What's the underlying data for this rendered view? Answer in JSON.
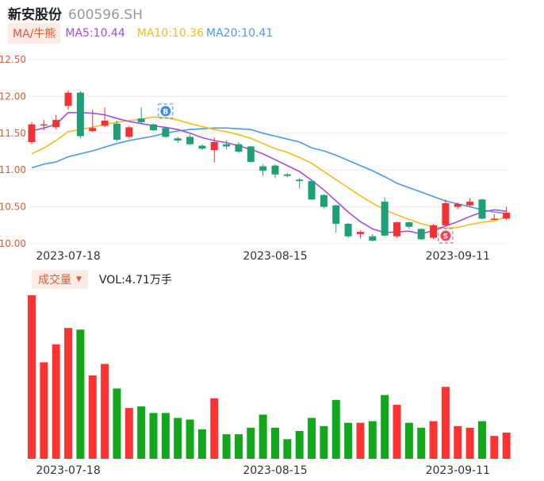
{
  "header": {
    "stock_name": "新安股份",
    "stock_code": "600596.SH"
  },
  "ma_legend": {
    "toggle": "MA/牛熊",
    "ma5": "MA5:10.44",
    "ma10": "MA10:10.36",
    "ma20": "MA20:10.41"
  },
  "volume_legend": {
    "toggle": "成交量",
    "value": "VOL:4.71万手"
  },
  "badges": {
    "b": "B",
    "s": "S"
  },
  "colors": {
    "up": "#f03236",
    "down": "#1ea076",
    "vol_up": "#ff3232",
    "vol_down": "#13a81c",
    "ma5": "#a34ce8",
    "ma10": "#f2bd1b",
    "ma20": "#4a9ae8",
    "grid": "#ececec"
  },
  "chart_data": [
    {
      "type": "candlestick",
      "y_ticks": [
        "12.50",
        "12.00",
        "11.50",
        "11.00",
        "10.50",
        "10.00"
      ],
      "ylim": [
        10.0,
        12.5
      ],
      "x_ticks": [
        {
          "label": "2023-07-18",
          "index": 3
        },
        {
          "label": "2023-08-15",
          "index": 20
        },
        {
          "label": "2023-09-11",
          "index": 35
        }
      ],
      "candles": [
        {
          "o": 11.38,
          "c": 11.62,
          "h": 11.65,
          "l": 11.35
        },
        {
          "o": 11.62,
          "c": 11.62,
          "h": 11.68,
          "l": 11.54
        },
        {
          "o": 11.58,
          "c": 11.68,
          "h": 11.75,
          "l": 11.55
        },
        {
          "o": 11.87,
          "c": 12.05,
          "h": 12.08,
          "l": 11.82
        },
        {
          "o": 12.05,
          "c": 11.46,
          "h": 12.07,
          "l": 11.43
        },
        {
          "o": 11.53,
          "c": 11.57,
          "h": 11.82,
          "l": 11.52
        },
        {
          "o": 11.6,
          "c": 11.67,
          "h": 11.85,
          "l": 11.58
        },
        {
          "o": 11.63,
          "c": 11.41,
          "h": 11.67,
          "l": 11.39
        },
        {
          "o": 11.45,
          "c": 11.58,
          "h": 11.6,
          "l": 11.43
        },
        {
          "o": 11.7,
          "c": 11.65,
          "h": 11.85,
          "l": 11.62
        },
        {
          "o": 11.62,
          "c": 11.54,
          "h": 11.63,
          "l": 11.53
        },
        {
          "o": 11.57,
          "c": 11.45,
          "h": 11.58,
          "l": 11.44
        },
        {
          "o": 11.43,
          "c": 11.4,
          "h": 11.45,
          "l": 11.37
        },
        {
          "o": 11.45,
          "c": 11.35,
          "h": 11.48,
          "l": 11.34
        },
        {
          "o": 11.33,
          "c": 11.29,
          "h": 11.35,
          "l": 11.27
        },
        {
          "o": 11.27,
          "c": 11.38,
          "h": 11.44,
          "l": 11.1
        },
        {
          "o": 11.35,
          "c": 11.32,
          "h": 11.4,
          "l": 11.28
        },
        {
          "o": 11.35,
          "c": 11.25,
          "h": 11.38,
          "l": 11.23
        },
        {
          "o": 11.32,
          "c": 11.11,
          "h": 11.33,
          "l": 11.1
        },
        {
          "o": 11.05,
          "c": 10.99,
          "h": 11.08,
          "l": 10.92
        },
        {
          "o": 11.06,
          "c": 10.94,
          "h": 11.08,
          "l": 10.89
        },
        {
          "o": 10.94,
          "c": 10.92,
          "h": 10.96,
          "l": 10.9
        },
        {
          "o": 10.87,
          "c": 10.85,
          "h": 10.89,
          "l": 10.75
        },
        {
          "o": 10.85,
          "c": 10.6,
          "h": 10.87,
          "l": 10.59
        },
        {
          "o": 10.66,
          "c": 10.5,
          "h": 10.67,
          "l": 10.48
        },
        {
          "o": 10.52,
          "c": 10.27,
          "h": 10.53,
          "l": 10.15
        },
        {
          "o": 10.27,
          "c": 10.1,
          "h": 10.28,
          "l": 10.08
        },
        {
          "o": 10.13,
          "c": 10.16,
          "h": 10.18,
          "l": 10.07
        },
        {
          "o": 10.1,
          "c": 10.04,
          "h": 10.13,
          "l": 10.03
        },
        {
          "o": 10.57,
          "c": 10.11,
          "h": 10.63,
          "l": 10.1
        },
        {
          "o": 10.1,
          "c": 10.29,
          "h": 10.3,
          "l": 10.08
        },
        {
          "o": 10.29,
          "c": 10.23,
          "h": 10.3,
          "l": 10.2
        },
        {
          "o": 10.2,
          "c": 10.06,
          "h": 10.21,
          "l": 10.05
        },
        {
          "o": 10.08,
          "c": 10.25,
          "h": 10.27,
          "l": 10.06
        },
        {
          "o": 10.25,
          "c": 10.55,
          "h": 10.6,
          "l": 10.23
        },
        {
          "o": 10.5,
          "c": 10.54,
          "h": 10.56,
          "l": 10.47
        },
        {
          "o": 10.52,
          "c": 10.57,
          "h": 10.62,
          "l": 10.5
        },
        {
          "o": 10.6,
          "c": 10.34,
          "h": 10.61,
          "l": 10.33
        },
        {
          "o": 10.34,
          "c": 10.34,
          "h": 10.4,
          "l": 10.33
        },
        {
          "o": 10.34,
          "c": 10.42,
          "h": 10.5,
          "l": 10.32
        }
      ],
      "ma5": [
        11.53,
        11.57,
        11.62,
        11.78,
        11.78,
        11.77,
        11.75,
        11.7,
        11.66,
        11.63,
        11.6,
        11.58,
        11.55,
        11.5,
        11.44,
        11.4,
        11.37,
        11.33,
        11.28,
        11.22,
        11.14,
        11.06,
        10.98,
        10.86,
        10.73,
        10.58,
        10.43,
        10.3,
        10.2,
        10.15,
        10.16,
        10.17,
        10.13,
        10.18,
        10.24,
        10.3,
        10.37,
        10.43,
        10.46,
        10.44
      ],
      "ma10": [
        11.22,
        11.3,
        11.4,
        11.52,
        11.55,
        11.58,
        11.62,
        11.65,
        11.67,
        11.69,
        11.72,
        11.71,
        11.68,
        11.63,
        11.59,
        11.55,
        11.52,
        11.48,
        11.43,
        11.36,
        11.29,
        11.24,
        11.17,
        11.09,
        10.98,
        10.87,
        10.76,
        10.65,
        10.55,
        10.46,
        10.39,
        10.33,
        10.27,
        10.23,
        10.21,
        10.22,
        10.26,
        10.29,
        10.31,
        10.36
      ],
      "ma20": [
        11.03,
        11.08,
        11.11,
        11.18,
        11.22,
        11.26,
        11.31,
        11.36,
        11.4,
        11.43,
        11.46,
        11.5,
        11.53,
        11.55,
        11.56,
        11.57,
        11.57,
        11.56,
        11.55,
        11.5,
        11.46,
        11.42,
        11.38,
        11.3,
        11.26,
        11.2,
        11.13,
        11.06,
        10.99,
        10.91,
        10.82,
        10.76,
        10.7,
        10.64,
        10.58,
        10.54,
        10.5,
        10.46,
        10.43,
        10.41
      ]
    },
    {
      "type": "bar",
      "title": "",
      "values": [
        100,
        59,
        70,
        80,
        79,
        51,
        58,
        43,
        31,
        32,
        28,
        28,
        25,
        24,
        18,
        37,
        15,
        15,
        19,
        27,
        19,
        12,
        17,
        25,
        20,
        36,
        22,
        22,
        23,
        39,
        33,
        22,
        19,
        23,
        44,
        20,
        19,
        23,
        14,
        16
      ],
      "ylim": [
        0,
        100
      ]
    }
  ]
}
